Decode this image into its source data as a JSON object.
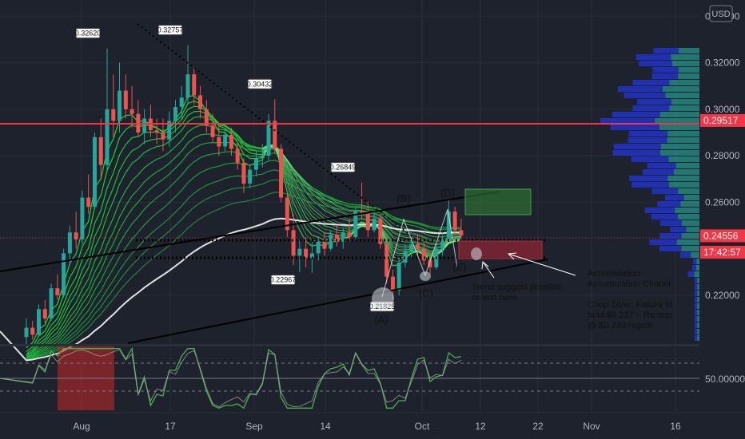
{
  "currency_button": "USD",
  "chart_data": {
    "type": "candlestick",
    "price_axis": {
      "ticks": [
        0.34,
        0.32,
        0.3,
        0.28,
        0.26,
        0.22
      ],
      "tick_labels": [
        "0.34000",
        "0.32000",
        "0.30000",
        "0.28000",
        "0.26000",
        "0.22000"
      ],
      "range": [
        0.199,
        0.347
      ]
    },
    "time_axis": {
      "labels": [
        "Aug",
        "17",
        "Sep",
        "14",
        "Oct",
        "12",
        "22",
        "Nov",
        "16"
      ]
    },
    "price_badges": [
      {
        "label": "0.29517",
        "value": 0.29517,
        "color": "#f23645"
      },
      {
        "label": "0.24556",
        "value": 0.24556,
        "color": "#f23645"
      },
      {
        "label": "17:42:57",
        "value": 0.2385,
        "color": "#f23645"
      }
    ],
    "resistance_line": 0.29517,
    "current_price": 0.24556,
    "peak_labels": [
      {
        "label": "0.32620",
        "value": 0.3262
      },
      {
        "label": "0.32757",
        "value": 0.32757
      },
      {
        "label": "0.30432",
        "value": 0.30432
      },
      {
        "label": "0.26849",
        "value": 0.26849
      },
      {
        "label": "0.22967",
        "value": 0.22967
      },
      {
        "label": "0.21825",
        "value": 0.21825
      }
    ],
    "wave_labels": [
      "(A)",
      "(B)",
      "(C)",
      "(D)",
      "(E)"
    ],
    "annotations": [
      "Accumulation:",
      "Accumulation Chanel",
      "Chop Zone: Failure to",
      "hold $0.237 = Re-test",
      "@ $0.230 region",
      "Trend suggest possible",
      "re-test here."
    ],
    "oscillator": {
      "tick_label": "50.00000",
      "level": 50,
      "range": [
        20,
        80
      ]
    },
    "ohlc": [
      [
        0.202,
        0.21,
        0.199,
        0.206
      ],
      [
        0.206,
        0.209,
        0.201,
        0.203
      ],
      [
        0.203,
        0.216,
        0.202,
        0.214
      ],
      [
        0.214,
        0.218,
        0.208,
        0.21
      ],
      [
        0.21,
        0.225,
        0.209,
        0.223
      ],
      [
        0.223,
        0.229,
        0.218,
        0.22
      ],
      [
        0.22,
        0.24,
        0.219,
        0.238
      ],
      [
        0.238,
        0.25,
        0.233,
        0.247
      ],
      [
        0.247,
        0.256,
        0.24,
        0.244
      ],
      [
        0.244,
        0.265,
        0.242,
        0.262
      ],
      [
        0.262,
        0.272,
        0.255,
        0.258
      ],
      [
        0.258,
        0.29,
        0.257,
        0.288
      ],
      [
        0.288,
        0.296,
        0.27,
        0.276
      ],
      [
        0.276,
        0.3262,
        0.274,
        0.3
      ],
      [
        0.3,
        0.315,
        0.288,
        0.295
      ],
      [
        0.295,
        0.32,
        0.29,
        0.308
      ],
      [
        0.308,
        0.315,
        0.296,
        0.3
      ],
      [
        0.3,
        0.31,
        0.292,
        0.298
      ],
      [
        0.298,
        0.304,
        0.288,
        0.29
      ],
      [
        0.29,
        0.3,
        0.285,
        0.296
      ],
      [
        0.296,
        0.302,
        0.288,
        0.291
      ],
      [
        0.291,
        0.296,
        0.285,
        0.29
      ],
      [
        0.29,
        0.296,
        0.282,
        0.287
      ],
      [
        0.287,
        0.299,
        0.284,
        0.295
      ],
      [
        0.295,
        0.304,
        0.29,
        0.301
      ],
      [
        0.301,
        0.31,
        0.296,
        0.305
      ],
      [
        0.305,
        0.3276,
        0.302,
        0.315
      ],
      [
        0.315,
        0.318,
        0.302,
        0.306
      ],
      [
        0.306,
        0.31,
        0.296,
        0.3
      ],
      [
        0.3,
        0.304,
        0.29,
        0.293
      ],
      [
        0.293,
        0.298,
        0.286,
        0.288
      ],
      [
        0.288,
        0.293,
        0.28,
        0.284
      ],
      [
        0.284,
        0.292,
        0.282,
        0.289
      ],
      [
        0.289,
        0.292,
        0.28,
        0.283
      ],
      [
        0.283,
        0.286,
        0.274,
        0.277
      ],
      [
        0.277,
        0.279,
        0.264,
        0.268
      ],
      [
        0.268,
        0.276,
        0.266,
        0.274
      ],
      [
        0.274,
        0.282,
        0.271,
        0.279
      ],
      [
        0.279,
        0.285,
        0.275,
        0.28
      ],
      [
        0.28,
        0.298,
        0.278,
        0.295
      ],
      [
        0.295,
        0.3043,
        0.281,
        0.283
      ],
      [
        0.283,
        0.285,
        0.26,
        0.262
      ],
      [
        0.262,
        0.264,
        0.245,
        0.248
      ],
      [
        0.248,
        0.255,
        0.233,
        0.237
      ],
      [
        0.237,
        0.244,
        0.23,
        0.24
      ],
      [
        0.24,
        0.245,
        0.232,
        0.236
      ],
      [
        0.236,
        0.243,
        0.2297,
        0.238
      ],
      [
        0.238,
        0.245,
        0.235,
        0.243
      ],
      [
        0.243,
        0.247,
        0.237,
        0.24
      ],
      [
        0.24,
        0.248,
        0.239,
        0.246
      ],
      [
        0.246,
        0.25,
        0.241,
        0.243
      ],
      [
        0.243,
        0.249,
        0.24,
        0.247
      ],
      [
        0.247,
        0.253,
        0.243,
        0.245
      ],
      [
        0.245,
        0.258,
        0.244,
        0.256
      ],
      [
        0.256,
        0.2685,
        0.253,
        0.255
      ],
      [
        0.255,
        0.26,
        0.245,
        0.248
      ],
      [
        0.248,
        0.256,
        0.247,
        0.253
      ],
      [
        0.253,
        0.255,
        0.24,
        0.242
      ],
      [
        0.242,
        0.244,
        0.225,
        0.228
      ],
      [
        0.228,
        0.231,
        0.2183,
        0.222
      ],
      [
        0.222,
        0.236,
        0.22,
        0.234
      ],
      [
        0.234,
        0.242,
        0.232,
        0.239
      ],
      [
        0.239,
        0.245,
        0.236,
        0.242
      ],
      [
        0.242,
        0.246,
        0.237,
        0.24
      ],
      [
        0.24,
        0.243,
        0.233,
        0.235
      ],
      [
        0.235,
        0.238,
        0.229,
        0.232
      ],
      [
        0.232,
        0.242,
        0.231,
        0.24
      ],
      [
        0.24,
        0.247,
        0.237,
        0.244
      ],
      [
        0.244,
        0.261,
        0.243,
        0.256
      ],
      [
        0.256,
        0.258,
        0.246,
        0.248
      ],
      [
        0.248,
        0.253,
        0.244,
        0.2456
      ]
    ]
  }
}
